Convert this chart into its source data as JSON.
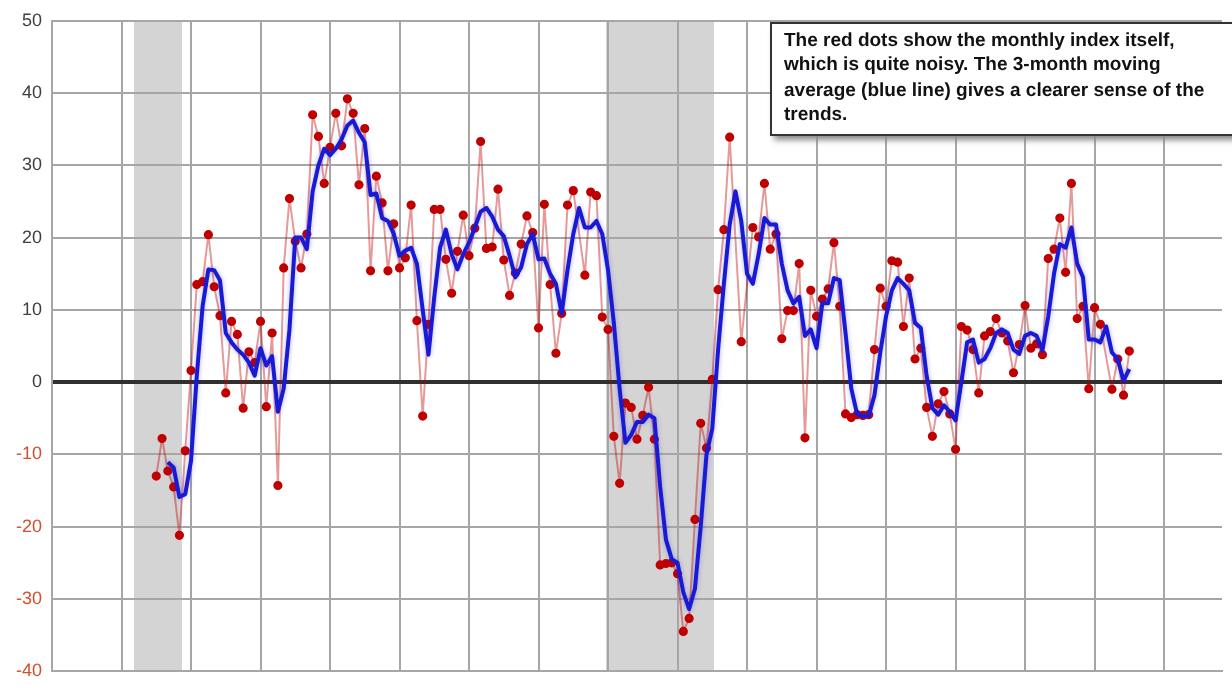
{
  "chart_data": {
    "type": "line",
    "annotations": [
      "The red dots show the monthly index itself, which is quite noisy. The 3-month moving average (blue line) gives a clearer sense of the trends."
    ],
    "categories": [
      null,
      null,
      null,
      null,
      null,
      null,
      null,
      null,
      null,
      null,
      null,
      null,
      null,
      null,
      null,
      null,
      null,
      null,
      null,
      null,
      null,
      null,
      null,
      null,
      null,
      null,
      null,
      null,
      null,
      null,
      null,
      null,
      null,
      null,
      null,
      null,
      null,
      null,
      null,
      null,
      null,
      null,
      null,
      null,
      null,
      null,
      null,
      null,
      null,
      null,
      null,
      null,
      null,
      null,
      null,
      null,
      null,
      null,
      null,
      null,
      null,
      null,
      null,
      null,
      null,
      null,
      null,
      null,
      null,
      null,
      null,
      null,
      null,
      null,
      null,
      null,
      null,
      null,
      null,
      null,
      null,
      null,
      null,
      null,
      null,
      null,
      null,
      null,
      null,
      null,
      null,
      null,
      null,
      null,
      null,
      null,
      null,
      null,
      null,
      null,
      null,
      null,
      null,
      null,
      null,
      null,
      null,
      null,
      null,
      null,
      null,
      null,
      null,
      null,
      null,
      null,
      null,
      null,
      null,
      null,
      null,
      null,
      null,
      null,
      null,
      null,
      null,
      null,
      null,
      null,
      null,
      null,
      null,
      null,
      null,
      null,
      null,
      null,
      null,
      null,
      null,
      null,
      null,
      null,
      null,
      null,
      null,
      null,
      null,
      null,
      null,
      null,
      null,
      null,
      null,
      null,
      null,
      null,
      null,
      null,
      null,
      null,
      null,
      null,
      null,
      null,
      null,
      null,
      null,
      null,
      null,
      null,
      null,
      null,
      null,
      null,
      null,
      null,
      null,
      null,
      null,
      null,
      null,
      null,
      null,
      null,
      null,
      null,
      null,
      null,
      null,
      null,
      null,
      null,
      null,
      null,
      null,
      null,
      null,
      null,
      null,
      null,
      null
    ],
    "ylim": [
      -40,
      50
    ],
    "yticks": [
      -40,
      -30,
      -20,
      -10,
      0,
      10,
      20,
      30,
      40,
      50
    ],
    "grid": true,
    "legend": false,
    "tick_labels": "y",
    "series": [
      {
        "color": "#c00000",
        "marker": "circle",
        "values": [
          null,
          null,
          null,
          null,
          null,
          null,
          null,
          null,
          null,
          null,
          null,
          null,
          null,
          null,
          null,
          null,
          null,
          null,
          -13,
          -7.8,
          -12.3,
          -14.5,
          -21.2,
          -9.5,
          1.6,
          13.5,
          13.9,
          20.4,
          13.2,
          9.2,
          -1.5,
          8.4,
          6.6,
          -3.6,
          4.2,
          2.7,
          8.4,
          -3.4,
          6.8,
          -14.3,
          15.8,
          25.4,
          19.5,
          15.8,
          20.5,
          37,
          34,
          27.5,
          32.5,
          37.2,
          32.7,
          39.2,
          37.2,
          27.3,
          35.1,
          15.4,
          28.5,
          24.8,
          15.4,
          21.9,
          15.8,
          17.2,
          24.5,
          8.5,
          -4.7,
          8,
          23.9,
          23.9,
          17,
          12.3,
          18.1,
          23.1,
          17.5,
          21.3,
          33.3,
          18.5,
          18.7,
          26.7,
          16.9,
          12,
          15.1,
          19.1,
          23,
          20.7,
          7.5,
          24.6,
          13.5,
          4,
          9.5,
          24.5,
          26.5,
          null,
          14.8,
          26.3,
          25.8,
          9,
          7.3,
          -7.5,
          -14,
          -2.9,
          -3.5,
          -7.9,
          -4.6,
          -0.7,
          -7.9,
          -25.3,
          -25.1,
          -25,
          -26.5,
          -34.5,
          -32.7,
          -19,
          -5.7,
          -9.1,
          0.4,
          12.8,
          21.1,
          33.9,
          null,
          5.6,
          null,
          21.4,
          20.1,
          27.5,
          18.4,
          20.5,
          6,
          9.9,
          9.9,
          16.4,
          -7.7,
          12.7,
          9.1,
          11.5,
          12.9,
          19.3,
          10.5,
          -4.4,
          -4.9,
          -4.5,
          -4.6,
          -4.5,
          4.5,
          13,
          10.5,
          16.8,
          16.6,
          7.7,
          14.4,
          3.2,
          4.7,
          -3.5,
          -7.5,
          -3,
          -1.3,
          -4.4,
          -9.3,
          7.7,
          7.2,
          4.5,
          -1.5,
          6.4,
          7,
          8.8,
          6.8,
          5.7,
          1.3,
          5.2,
          10.6,
          4.7,
          5.3,
          3.8,
          17.1,
          18.4,
          22.7,
          15.2,
          27.5,
          8.8,
          10.5,
          -0.9,
          10.3,
          8,
          null,
          -1,
          3.2,
          -1.8,
          4.3,
          null,
          null,
          null,
          null,
          null,
          null,
          null,
          null,
          null,
          null,
          null,
          null,
          null,
          null,
          null,
          null
        ]
      },
      {
        "color": "#1a1ad4",
        "marker": "none",
        "values": [
          null,
          null,
          null,
          null,
          null,
          null,
          null,
          null,
          null,
          null,
          null,
          null,
          null,
          null,
          null,
          null,
          null,
          null,
          null,
          null,
          -11.1,
          -11.8,
          -15.9,
          -15.5,
          -10.9,
          0.9,
          10.5,
          15.6,
          15.5,
          14.1,
          6.8,
          5.5,
          4.5,
          3.8,
          2.7,
          0.9,
          4.7,
          2.3,
          3.6,
          -4.1,
          -0.9,
          7.3,
          20,
          20,
          18.4,
          26.4,
          30,
          32.3,
          31.4,
          32.3,
          33.6,
          35.5,
          36.2,
          34.5,
          33.2,
          25.9,
          26.1,
          22.7,
          22.3,
          20.5,
          17.5,
          18.2,
          18.6,
          16.4,
          10,
          3.8,
          11.8,
          18.6,
          21.1,
          17.7,
          15.6,
          17.7,
          19.3,
          21.4,
          23.6,
          24.1,
          22.9,
          21.1,
          20.2,
          17.5,
          14.5,
          15.9,
          19.1,
          20.5,
          17,
          17.1,
          15,
          13.6,
          9.5,
          15.5,
          20.5,
          24.1,
          21.4,
          21.4,
          22.3,
          20.5,
          15.5,
          8.2,
          -0.9,
          -8.4,
          -7.3,
          -5.5,
          -5.5,
          -4.5,
          -5,
          -14.5,
          -21.8,
          -24.5,
          -25,
          -29.1,
          -31.4,
          -28.6,
          -20,
          -10,
          -6.4,
          4.5,
          13.6,
          21.8,
          26.4,
          22.3,
          15,
          13.6,
          17.7,
          22.7,
          21.8,
          21.8,
          16.4,
          12.7,
          10.9,
          11.8,
          6.4,
          7.3,
          4.7,
          10.9,
          10.9,
          14.4,
          14.1,
          6.8,
          -0.9,
          -4.4,
          -4.7,
          -4.7,
          -1.8,
          4.1,
          9.1,
          12.7,
          14.4,
          13.6,
          12.7,
          8.2,
          7.5,
          0.9,
          -3.6,
          -4.5,
          -3.2,
          -4.1,
          -5.3,
          0,
          5.5,
          5.9,
          2.7,
          3.2,
          4.7,
          6.8,
          7.3,
          6.8,
          4.5,
          3.9,
          6.4,
          6.8,
          6.4,
          4.4,
          9.1,
          15,
          19.1,
          18.6,
          21.4,
          16.4,
          14.5,
          5.9,
          5.9,
          5.5,
          7.7,
          4.1,
          3.2,
          0.2,
          1.8,
          null,
          null,
          null,
          null,
          null,
          null,
          null,
          null,
          null,
          null,
          null,
          null,
          null,
          null,
          null,
          null
        ]
      }
    ]
  }
}
